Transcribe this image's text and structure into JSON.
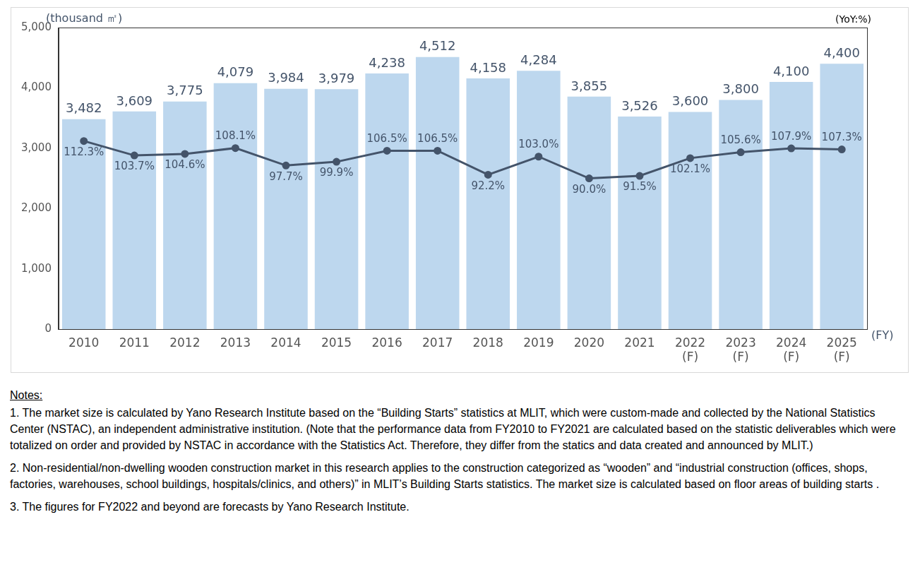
{
  "chart_data": {
    "type": "bar",
    "y_label": "(thousand ㎡)",
    "y2_label": "(YoY:%)",
    "x_label": "(FY)",
    "categories": [
      "2010",
      "2011",
      "2012",
      "2013",
      "2014",
      "2015",
      "2016",
      "2017",
      "2018",
      "2019",
      "2020",
      "2021",
      "2022 (F)",
      "2023 (F)",
      "2024 (F)",
      "2025 (F)"
    ],
    "ylim": [
      0,
      5000
    ],
    "yticks": [
      0,
      {
        "value": 1000,
        "label": "1,000"
      },
      {
        "value": 2000,
        "label": "2,000"
      },
      {
        "value": 3000,
        "label": "3,000"
      },
      {
        "value": 4000,
        "label": "4,000"
      },
      {
        "value": 5000,
        "label": "5,000"
      }
    ],
    "y2lim": [
      0,
      180
    ],
    "grid": false,
    "data_labels": true,
    "series": [
      {
        "type": "bar",
        "color": "#bdd7ee",
        "values": [
          3482,
          3609,
          3775,
          4079,
          3984,
          3979,
          4238,
          4512,
          4158,
          4284,
          3855,
          3526,
          3600,
          3800,
          4100,
          4400
        ],
        "value_labels": [
          "3,482",
          "3,609",
          "3,775",
          "4,079",
          "3,984",
          "3,979",
          "4,238",
          "4,512",
          "4,158",
          "4,284",
          "3,855",
          "3,526",
          "3,600",
          "3,800",
          "4,100",
          "4,400"
        ]
      },
      {
        "type": "line",
        "color": "#44546a",
        "marker": "circle",
        "axis": "y2",
        "values": [
          112.3,
          103.7,
          104.6,
          108.1,
          97.7,
          99.9,
          106.5,
          106.5,
          92.2,
          103.0,
          90.0,
          91.5,
          102.1,
          105.6,
          107.9,
          107.3
        ],
        "value_labels": [
          "112.3%",
          "103.7%",
          "104.6%",
          "108.1%",
          "97.7%",
          "99.9%",
          "106.5%",
          "106.5%",
          "92.2%",
          "103.0%",
          "90.0%",
          "91.5%",
          "102.1%",
          "105.6%",
          "107.9%",
          "107.3%"
        ]
      }
    ]
  },
  "notes": {
    "heading": "Notes:",
    "items": [
      "1.  The market size is calculated by Yano Research Institute based on the “Building Starts” statistics at MLIT, which were custom-made and collected by the National Statistics Center (NSTAC), an independent administrative institution. (Note that the performance data from FY2010 to FY2021 are calculated based on the statistic deliverables which were totalized on order and provided by NSTAC in accordance with the Statistics Act. Therefore, they differ from the statics and data created and announced by MLIT.)",
      "2.  Non-residential/non-dwelling wooden construction market in this research applies to the construction categorized as “wooden” and “industrial construction (offices, shops, factories, warehouses, school buildings, hospitals/clinics, and others)” in MLIT’s Building Starts statistics. The market size is calculated based on floor areas of building starts .",
      "3.  The figures for FY2022 and beyond are forecasts by Yano Research Institute."
    ]
  }
}
